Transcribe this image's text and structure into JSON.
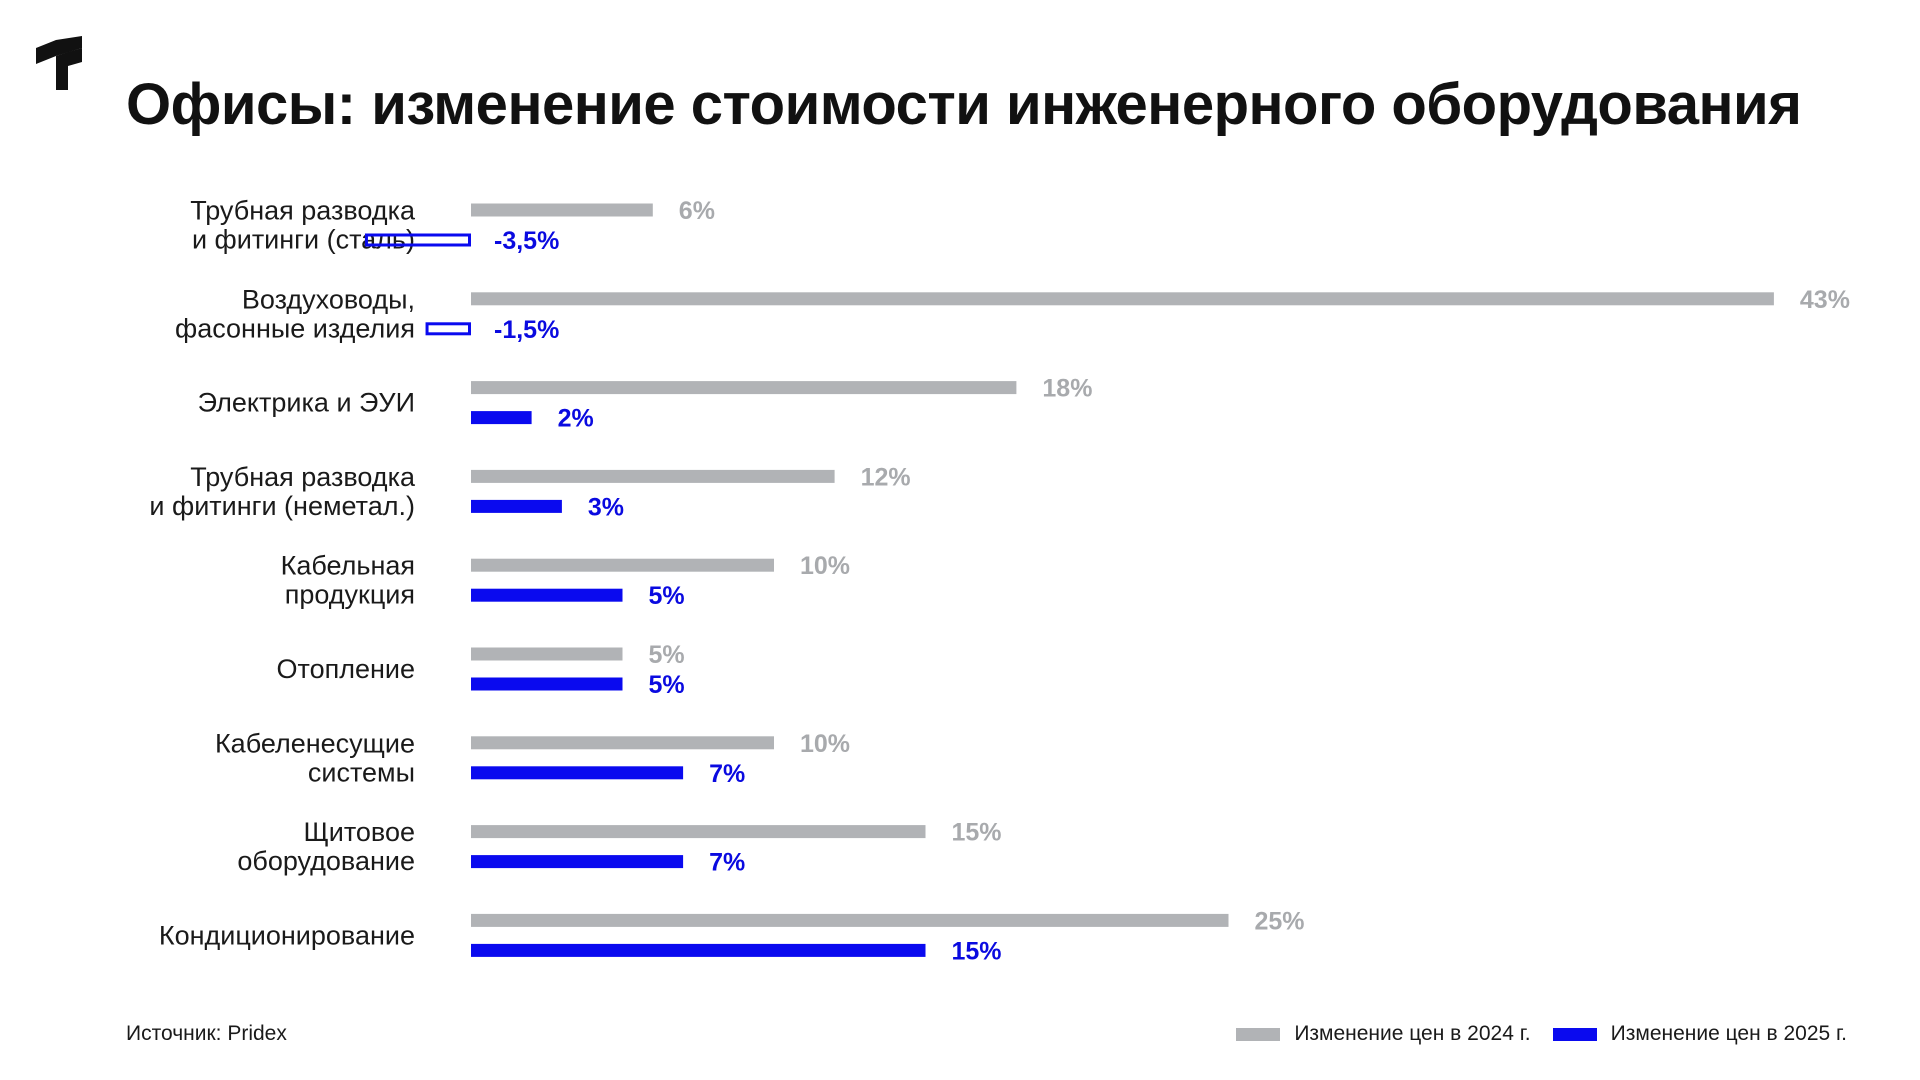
{
  "header": {
    "title": "Офисы: изменение стоимости инженерного оборудования",
    "logo_icon": "brand-logo-icon"
  },
  "footer": {
    "source": "Источник: Pridex"
  },
  "colors": {
    "series_2024": "#b1b3b6",
    "series_2025": "#0a0aef",
    "label_2024": "#a8aaad",
    "label_2025": "#0a0ae0"
  },
  "chart_data": {
    "type": "bar",
    "orientation": "horizontal",
    "title": "Офисы: изменение стоимости инженерного оборудования",
    "categories": [
      [
        "Трубная разводка",
        "и фитинги (сталь)"
      ],
      [
        "Воздуховоды,",
        "фасонные изделия"
      ],
      [
        "Электрика и ЭУИ"
      ],
      [
        "Трубная разводка",
        "и фитинги (неметал.)"
      ],
      [
        "Кабельная",
        "продукция"
      ],
      [
        "Отопление"
      ],
      [
        "Кабеленесущие",
        "системы"
      ],
      [
        "Щитовое",
        "оборудование"
      ],
      [
        "Кондиционирование"
      ]
    ],
    "series": [
      {
        "name": "Изменение цен в 2024 г.",
        "values": [
          6,
          43,
          18,
          12,
          10,
          5,
          10,
          15,
          25
        ],
        "labels": [
          "6%",
          "43%",
          "18%",
          "12%",
          "10%",
          "5%",
          "10%",
          "15%",
          "25%"
        ]
      },
      {
        "name": "Изменение цен в 2025 г.",
        "values": [
          -3.5,
          -1.5,
          2,
          3,
          5,
          5,
          7,
          7,
          15
        ],
        "labels": [
          "-3,5%",
          "-1,5%",
          "2%",
          "3%",
          "5%",
          "5%",
          "7%",
          "7%",
          "15%"
        ]
      }
    ],
    "legend_position": "bottom-right",
    "grid": false
  }
}
